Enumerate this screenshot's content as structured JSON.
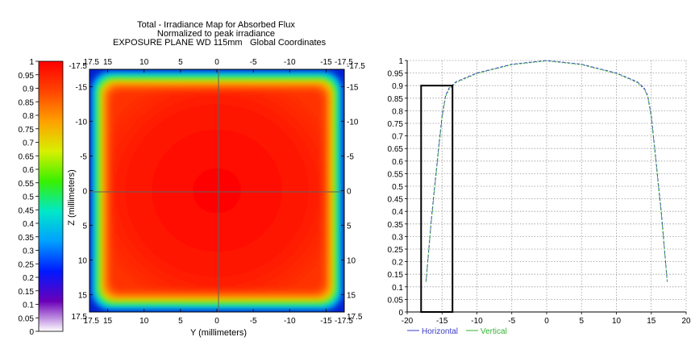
{
  "header": {
    "title": "Total - Irradiance Map for Absorbed Flux",
    "subtitle": "Normalized to peak irradiance",
    "plane": "EXPOSURE PLANE WD 115mm",
    "coords": "Global Coordinates"
  },
  "chart_data": [
    {
      "type": "colorbar",
      "range": [
        0,
        1
      ],
      "ticks": [
        "0",
        "0.05",
        "0.1",
        "0.15",
        "0.2",
        "0.25",
        "0.3",
        "0.35",
        "0.4",
        "0.45",
        "0.5",
        "0.55",
        "0.6",
        "0.65",
        "0.7",
        "0.75",
        "0.8",
        "0.85",
        "0.9",
        "0.95",
        "1"
      ],
      "colors": [
        "#ffffff",
        "#6a00b8",
        "#0018ff",
        "#00a0ff",
        "#00e8c8",
        "#38f000",
        "#d8f000",
        "#ffa000",
        "#ff4400",
        "#ff0000"
      ]
    },
    {
      "type": "heatmap",
      "title": "Total - Irradiance Map for Absorbed Flux",
      "xlabel": "Y (millimeters)",
      "ylabel": "Z (millimeters)",
      "x_range": [
        17.5,
        -17.5
      ],
      "y_range": [
        -17.5,
        17.5
      ],
      "top_ticks": [
        "17.5",
        "15",
        "10",
        "5",
        "0",
        "-5",
        "-10",
        "-15",
        "-17.5"
      ],
      "bottom_ticks": [
        "17.5",
        "15",
        "10",
        "5",
        "0",
        "-5",
        "-10",
        "-15",
        "-17.5"
      ],
      "left_ticks": [
        "-17.5",
        "-15",
        "-10",
        "-5",
        "0",
        "5",
        "10",
        "15",
        "17.5"
      ],
      "right_ticks": [
        "-17.5",
        "-15",
        "-10",
        "-5",
        "0",
        "5",
        "10",
        "15",
        "17.5"
      ],
      "flat_region_half_width": 15,
      "peak_value": 1
    },
    {
      "type": "line",
      "xlim": [
        -20,
        20
      ],
      "ylim": [
        0,
        1
      ],
      "x_ticks": [
        "-20",
        "-15",
        "-10",
        "-5",
        "0",
        "5",
        "10",
        "15",
        "20"
      ],
      "y_ticks": [
        "0",
        "0.05",
        "0.1",
        "0.15",
        "0.2",
        "0.25",
        "0.3",
        "0.35",
        "0.4",
        "0.45",
        "0.5",
        "0.55",
        "0.6",
        "0.65",
        "0.7",
        "0.75",
        "0.8",
        "0.85",
        "0.9",
        "0.95",
        "1"
      ],
      "legend_position": "bottom-left",
      "grid": true,
      "series": [
        {
          "name": "Horizontal",
          "color": "#3c3cc8",
          "x": [
            -17.3,
            -16.5,
            -15.5,
            -15,
            -14.5,
            -14,
            -13,
            -10,
            -5,
            0,
            5,
            10,
            13,
            14,
            14.5,
            15,
            15.5,
            16.5,
            17.3
          ],
          "y": [
            0.12,
            0.38,
            0.65,
            0.78,
            0.86,
            0.89,
            0.915,
            0.95,
            0.985,
            1.0,
            0.985,
            0.95,
            0.915,
            0.89,
            0.86,
            0.78,
            0.65,
            0.38,
            0.12
          ]
        },
        {
          "name": "Vertical",
          "color": "#32b432",
          "x": [
            -17.3,
            -16.5,
            -15.5,
            -15,
            -14.5,
            -14,
            -13,
            -10,
            -5,
            0,
            5,
            10,
            13,
            14,
            14.5,
            15,
            15.5,
            16.5,
            17.3
          ],
          "y": [
            0.12,
            0.37,
            0.64,
            0.77,
            0.855,
            0.885,
            0.912,
            0.948,
            0.983,
            0.998,
            0.983,
            0.948,
            0.912,
            0.885,
            0.855,
            0.77,
            0.64,
            0.37,
            0.12
          ]
        }
      ],
      "highlight_box": {
        "x": [
          -18,
          -13.5
        ],
        "y": [
          0,
          0.9
        ]
      }
    }
  ]
}
